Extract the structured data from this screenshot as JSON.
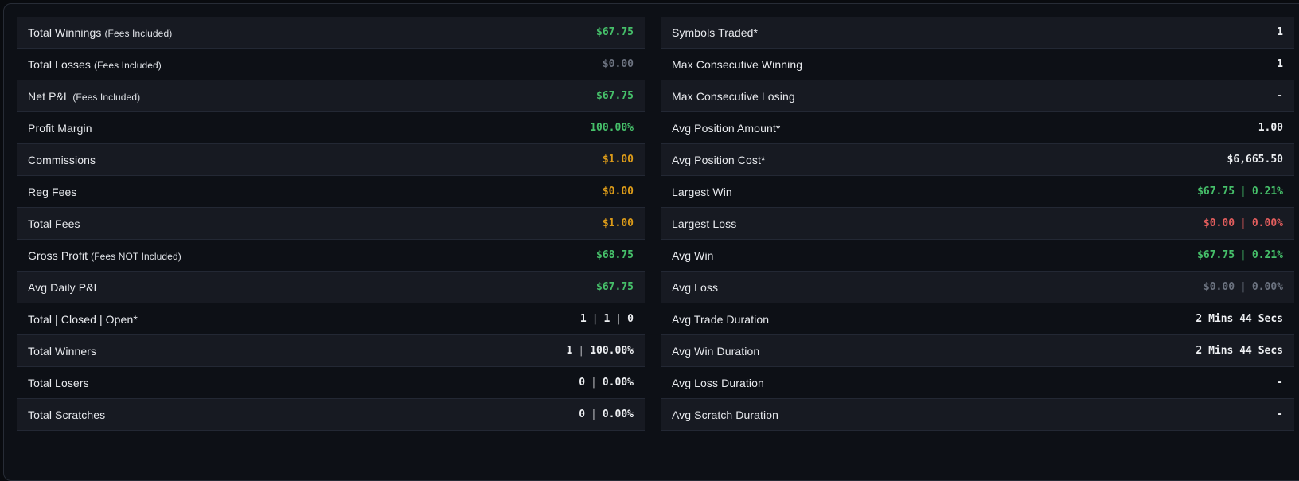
{
  "colors": {
    "green": "#46c06a",
    "red": "#e25d5d",
    "orange": "#dc9b19",
    "muted": "#6c7380",
    "white": "#eef0f3"
  },
  "separator": "|",
  "stats": {
    "left": [
      {
        "label": "Total Winnings",
        "sub": "(Fees Included)",
        "parts": [
          "$67.75"
        ],
        "color": "green"
      },
      {
        "label": "Total Losses",
        "sub": "(Fees Included)",
        "parts": [
          "$0.00"
        ],
        "color": "muted"
      },
      {
        "label": "Net P&L",
        "sub": "(Fees Included)",
        "parts": [
          "$67.75"
        ],
        "color": "green"
      },
      {
        "label": "Profit Margin",
        "parts": [
          "100.00%"
        ],
        "color": "green"
      },
      {
        "label": "Commissions",
        "parts": [
          "$1.00"
        ],
        "color": "orange"
      },
      {
        "label": "Reg Fees",
        "parts": [
          "$0.00"
        ],
        "color": "orange"
      },
      {
        "label": "Total Fees",
        "parts": [
          "$1.00"
        ],
        "color": "orange"
      },
      {
        "label": "Gross Profit",
        "sub": "(Fees NOT Included)",
        "parts": [
          "$68.75"
        ],
        "color": "green"
      },
      {
        "label": "Avg Daily P&L",
        "parts": [
          "$67.75"
        ],
        "color": "green"
      },
      {
        "label": "Total | Closed | Open*",
        "parts": [
          "1",
          "1",
          "0"
        ],
        "color": "white"
      },
      {
        "label": "Total Winners",
        "parts": [
          "1",
          "100.00%"
        ],
        "color": "white"
      },
      {
        "label": "Total Losers",
        "parts": [
          "0",
          "0.00%"
        ],
        "color": "white"
      },
      {
        "label": "Total Scratches",
        "parts": [
          "0",
          "0.00%"
        ],
        "color": "white"
      }
    ],
    "right": [
      {
        "label": "Symbols Traded*",
        "parts": [
          "1"
        ],
        "color": "white"
      },
      {
        "label": "Max Consecutive Winning",
        "parts": [
          "1"
        ],
        "color": "white"
      },
      {
        "label": "Max Consecutive Losing",
        "parts": [
          "-"
        ],
        "color": "white"
      },
      {
        "label": "Avg Position Amount*",
        "parts": [
          "1.00"
        ],
        "color": "white"
      },
      {
        "label": "Avg Position Cost*",
        "parts": [
          "$6,665.50"
        ],
        "color": "white"
      },
      {
        "label": "Largest Win",
        "parts": [
          "$67.75",
          "0.21%"
        ],
        "color": "green"
      },
      {
        "label": "Largest Loss",
        "parts": [
          "$0.00",
          "0.00%"
        ],
        "color": "red"
      },
      {
        "label": "Avg Win",
        "parts": [
          "$67.75",
          "0.21%"
        ],
        "color": "green"
      },
      {
        "label": "Avg Loss",
        "parts": [
          "$0.00",
          "0.00%"
        ],
        "color": "muted"
      },
      {
        "label": "Avg Trade Duration",
        "parts": [
          "2 Mins 44 Secs"
        ],
        "color": "white"
      },
      {
        "label": "Avg Win Duration",
        "parts": [
          "2 Mins 44 Secs"
        ],
        "color": "white"
      },
      {
        "label": "Avg Loss Duration",
        "parts": [
          "-"
        ],
        "color": "white"
      },
      {
        "label": "Avg Scratch Duration",
        "parts": [
          "-"
        ],
        "color": "white"
      }
    ]
  }
}
